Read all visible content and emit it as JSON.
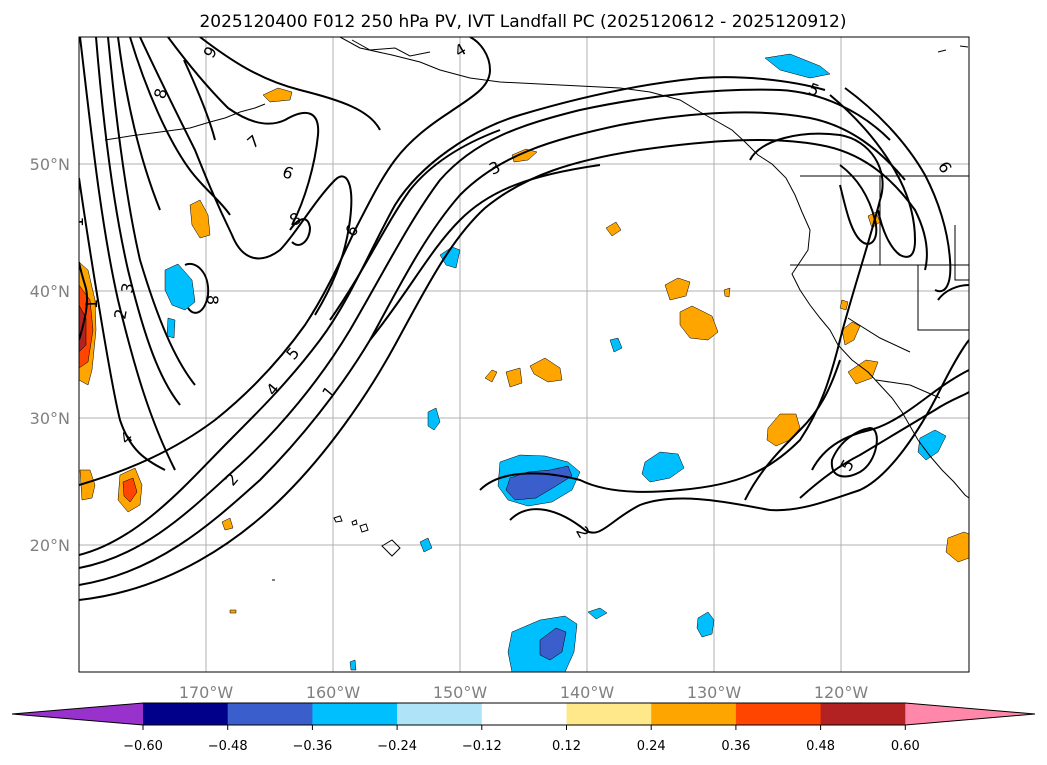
{
  "title": "2025120400 F012 250 hPa PV, IVT Landfall PC (2025120612 - 2025120912)",
  "map": {
    "lon_range": [
      -180,
      -110
    ],
    "lat_range": [
      10,
      60
    ],
    "lon_ticks": [
      "170°W",
      "160°W",
      "150°W",
      "140°W",
      "130°W",
      "120°W"
    ],
    "lat_ticks": [
      "50°N",
      "40°N",
      "30°N",
      "20°N"
    ],
    "grid": true,
    "contour_labels": [
      "9",
      "8",
      "7",
      "6",
      "8",
      "6",
      "3",
      "5",
      "6",
      "4",
      "1",
      "3",
      "2",
      "1",
      "8",
      "5",
      "4",
      "1",
      "4",
      "2",
      "2",
      "5"
    ]
  },
  "colorbar": {
    "ticks": [
      "−0.60",
      "−0.48",
      "−0.36",
      "−0.24",
      "−0.12",
      "0.12",
      "0.24",
      "0.36",
      "0.48",
      "0.60"
    ],
    "colors": {
      "under": "#9932cc",
      "levels": [
        "#00008b",
        "#3a5fcd",
        "#00bfff",
        "#aee3f8",
        "#ffffff",
        "#ffe88a",
        "#ffa500",
        "#ff4500",
        "#b22222",
        "#ff88aa"
      ]
    }
  }
}
